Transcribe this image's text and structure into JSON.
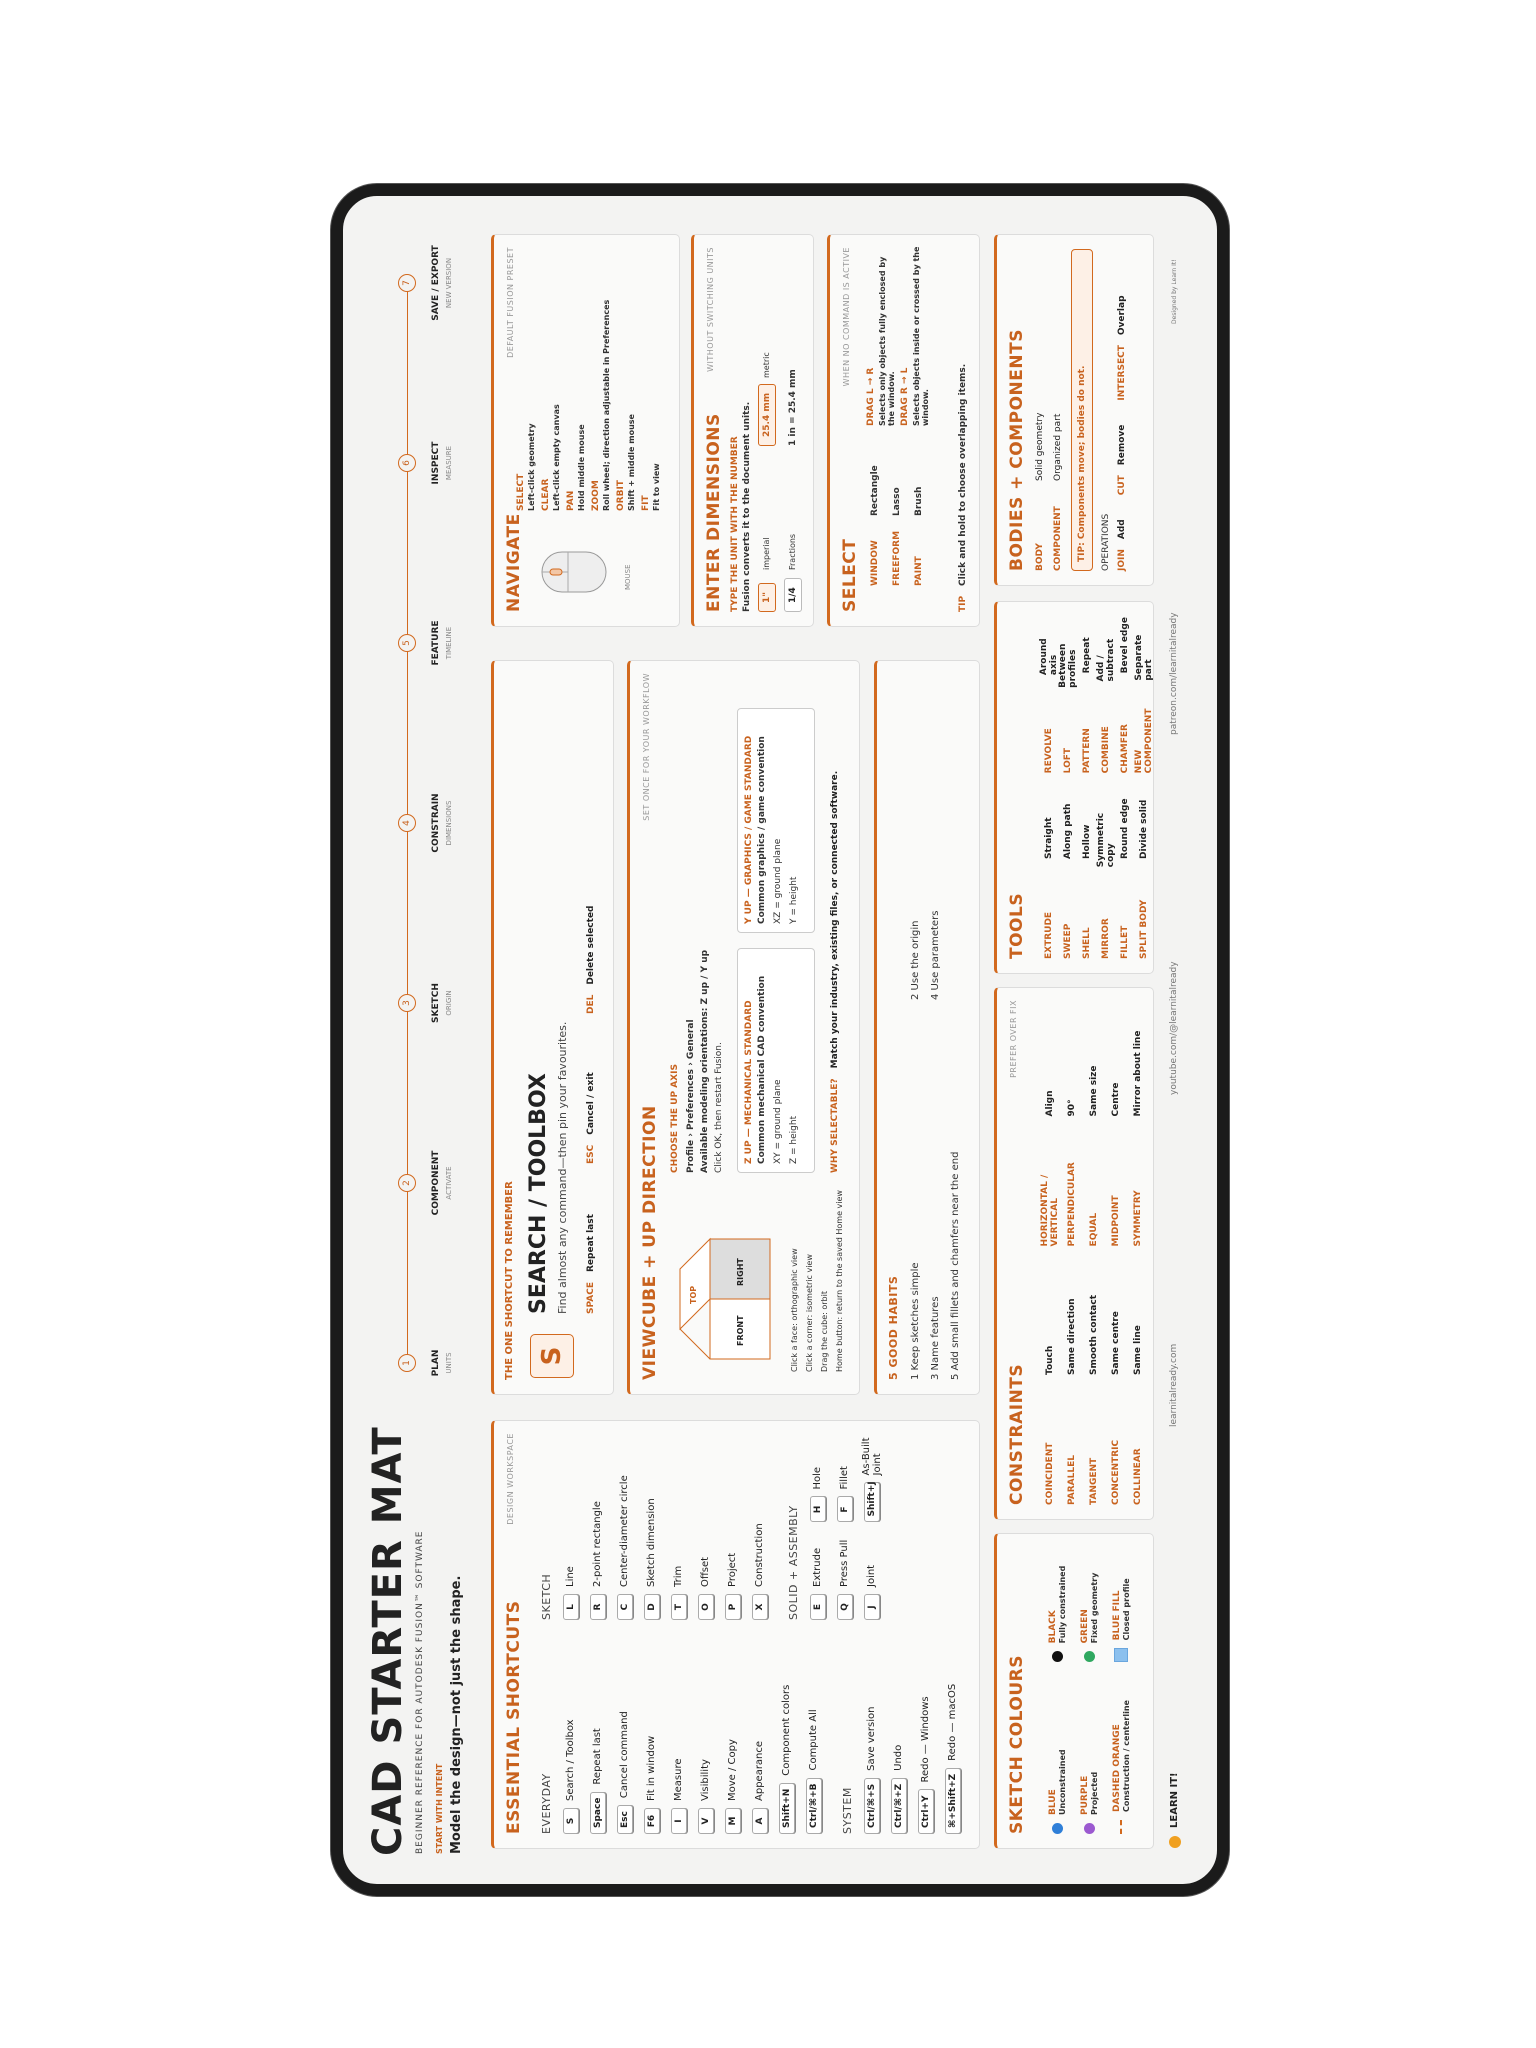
{
  "header": {
    "title": "CAD STARTER MAT",
    "subtitle": "BEGINNER REFERENCE FOR AUTODESK FUSION™ SOFTWARE",
    "intent_label": "START WITH INTENT",
    "intent": "Model the design—not just the shape."
  },
  "workflow": [
    {
      "number": "1",
      "step": "PLAN",
      "detail": "UNITS"
    },
    {
      "number": "2",
      "step": "COMPONENT",
      "detail": "ACTIVATE"
    },
    {
      "number": "3",
      "step": "SKETCH",
      "detail": "ORIGIN"
    },
    {
      "number": "4",
      "step": "CONSTRAIN",
      "detail": "DIMENSIONS"
    },
    {
      "number": "5",
      "step": "FEATURE",
      "detail": "TIMELINE"
    },
    {
      "number": "6",
      "step": "INSPECT",
      "detail": "MEASURE"
    },
    {
      "number": "7",
      "step": "SAVE / EXPORT",
      "detail": "NEW VERSION"
    }
  ],
  "shortcuts": {
    "title": "ESSENTIAL SHORTCUTS",
    "note": "DESIGN WORKSPACE",
    "groups": [
      {
        "heading": "EVERYDAY",
        "items": [
          {
            "key": "S",
            "label": "Search / Toolbox"
          },
          {
            "key": "Space",
            "label": "Repeat last"
          },
          {
            "key": "Esc",
            "label": "Cancel command"
          },
          {
            "key": "F6",
            "label": "Fit in window"
          },
          {
            "key": "I",
            "label": "Measure"
          },
          {
            "key": "V",
            "label": "Visibility"
          },
          {
            "key": "M",
            "label": "Move / Copy"
          },
          {
            "key": "A",
            "label": "Appearance"
          },
          {
            "key": "Shift+N",
            "label": "Component colors"
          },
          {
            "key": "Ctrl/⌘+B",
            "label": "Compute All"
          }
        ]
      },
      {
        "heading": "SYSTEM",
        "items": [
          {
            "key": "Ctrl/⌘+S",
            "label": "Save version"
          },
          {
            "key": "Ctrl/⌘+Z",
            "label": "Undo"
          },
          {
            "key": "Ctrl+Y",
            "label": "Redo — Windows"
          },
          {
            "key": "⌘+Shift+Z",
            "label": "Redo — macOS"
          }
        ]
      },
      {
        "heading": "SKETCH",
        "items": [
          {
            "key": "L",
            "label": "Line"
          },
          {
            "key": "R",
            "label": "2-point rectangle"
          },
          {
            "key": "C",
            "label": "Center-diameter circle"
          },
          {
            "key": "D",
            "label": "Sketch dimension"
          },
          {
            "key": "T",
            "label": "Trim"
          },
          {
            "key": "O",
            "label": "Offset"
          },
          {
            "key": "P",
            "label": "Project"
          },
          {
            "key": "X",
            "label": "Construction"
          }
        ]
      },
      {
        "heading": "SOLID + ASSEMBLY",
        "items": [
          {
            "key": "E",
            "label": "Extrude"
          },
          {
            "key": "H",
            "label": "Hole"
          },
          {
            "key": "Q",
            "label": "Press Pull"
          },
          {
            "key": "F",
            "label": "Fillet"
          },
          {
            "key": "J",
            "label": "Joint"
          },
          {
            "key": "Shift+J",
            "label": "As-Built Joint"
          }
        ]
      }
    ]
  },
  "one_shortcut": {
    "heading": "THE ONE SHORTCUT TO REMEMBER",
    "key": "S",
    "title": "SEARCH / TOOLBOX",
    "detail": "Find almost any command—then pin your favourites.",
    "extras": [
      {
        "key": "SPACE",
        "label": "Repeat last"
      },
      {
        "key": "ESC",
        "label": "Cancel / exit"
      },
      {
        "key": "DEL",
        "label": "Delete selected"
      }
    ]
  },
  "viewcube": {
    "title": "VIEWCUBE + UP DIRECTION",
    "note": "SET ONCE FOR YOUR WORKFLOW",
    "faces": {
      "top": "TOP",
      "front": "FRONT",
      "right": "RIGHT"
    },
    "tips": [
      "Click a face: orthographic view",
      "Click a corner: isometric view",
      "Drag the cube: orbit",
      "Home button: return to the saved Home view"
    ],
    "up_axis": {
      "heading": "CHOOSE THE UP AXIS",
      "path": "Profile › Preferences › General",
      "options": "Available modeling orientations: Z up / Y up",
      "restart": "Click OK, then restart Fusion."
    },
    "standards": [
      {
        "title": "Z UP — MECHANICAL STANDARD",
        "detail": "Common mechanical CAD convention",
        "ground": "XY = ground plane",
        "height": "Z = height"
      },
      {
        "title": "Y UP — GRAPHICS / GAME STANDARD",
        "detail": "Common graphics / game convention",
        "ground": "XZ = ground plane",
        "height": "Y = height"
      }
    ],
    "why_label": "WHY SELECTABLE?",
    "why": "Match your industry, existing files, or connected software."
  },
  "habits": {
    "title": "5 GOOD HABITS",
    "items": [
      "1 Keep sketches simple",
      "2 Use the origin",
      "3 Name features",
      "4 Use parameters",
      "5 Add small fillets and chamfers near the end"
    ]
  },
  "navigate": {
    "title": "NAVIGATE",
    "note": "DEFAULT FUSION PRESET",
    "mouse_label": "MOUSE",
    "actions": [
      {
        "action": "SELECT",
        "detail": "Left-click geometry"
      },
      {
        "action": "CLEAR",
        "detail": "Left-click empty canvas"
      },
      {
        "action": "PAN",
        "detail": "Hold middle mouse"
      },
      {
        "action": "ZOOM",
        "detail": "Roll wheel; direction adjustable in Preferences"
      },
      {
        "action": "ORBIT",
        "detail": "Shift + middle mouse"
      },
      {
        "action": "FIT",
        "detail": "Fit to view"
      }
    ]
  },
  "dimensions": {
    "title": "ENTER DIMENSIONS",
    "note": "WITHOUT SWITCHING UNITS",
    "heading": "TYPE THE UNIT WITH THE NUMBER",
    "detail": "Fusion converts it to the document units.",
    "examples": [
      {
        "input": "1\"",
        "label": "imperial"
      },
      {
        "input": "25.4 mm",
        "label": "metric"
      },
      {
        "input": "1/4",
        "label": "Fractions"
      }
    ],
    "equivalence": "1 in = 25.4 mm"
  },
  "select": {
    "title": "SELECT",
    "note": "WHEN NO COMMAND IS ACTIVE",
    "modes": [
      {
        "mode": "WINDOW",
        "tool": "Rectangle"
      },
      {
        "mode": "FREEFORM",
        "tool": "Lasso"
      },
      {
        "mode": "PAINT",
        "tool": "Brush"
      }
    ],
    "drags": [
      {
        "direction": "DRAG L → R",
        "detail": "Selects only objects fully enclosed by the window."
      },
      {
        "direction": "DRAG R → L",
        "detail": "Selects objects inside or crossed by the window."
      }
    ],
    "tip_label": "TIP",
    "tip": "Click and hold to choose overlapping items."
  },
  "sketch_colours": {
    "title": "SKETCH COLOURS",
    "items": [
      {
        "name": "BLUE",
        "meaning": "Unconstrained",
        "swatch": "#2f7fd8",
        "swatch_style": "dot"
      },
      {
        "name": "PURPLE",
        "meaning": "Projected",
        "swatch": "#9b59d0",
        "swatch_style": "dot"
      },
      {
        "name": "DASHED ORANGE",
        "meaning": "Construction / centerline",
        "swatch": "#d2691e",
        "swatch_style": "dashed"
      },
      {
        "name": "BLACK",
        "meaning": "Fully constrained",
        "swatch": "#111111",
        "swatch_style": "dot"
      },
      {
        "name": "GREEN",
        "meaning": "Fixed geometry",
        "swatch": "#2fa860",
        "swatch_style": "dot"
      },
      {
        "name": "BLUE FILL",
        "meaning": "Closed profile",
        "swatch": "#8cc0ee",
        "swatch_style": "fill"
      }
    ]
  },
  "constraints": {
    "title": "CONSTRAINTS",
    "note": "PREFER OVER FIX",
    "items": [
      {
        "name": "COINCIDENT",
        "meaning": "Touch"
      },
      {
        "name": "PARALLEL",
        "meaning": "Same direction"
      },
      {
        "name": "TANGENT",
        "meaning": "Smooth contact"
      },
      {
        "name": "CONCENTRIC",
        "meaning": "Same centre"
      },
      {
        "name": "COLLINEAR",
        "meaning": "Same line"
      },
      {
        "name": "HORIZONTAL / VERTICAL",
        "meaning": "Align"
      },
      {
        "name": "PERPENDICULAR",
        "meaning": "90°"
      },
      {
        "name": "EQUAL",
        "meaning": "Same size"
      },
      {
        "name": "MIDPOINT",
        "meaning": "Centre"
      },
      {
        "name": "SYMMETRY",
        "meaning": "Mirror about line"
      }
    ]
  },
  "tools": {
    "title": "TOOLS",
    "items": [
      {
        "name": "EXTRUDE",
        "meaning": "Straight"
      },
      {
        "name": "SWEEP",
        "meaning": "Along path"
      },
      {
        "name": "SHELL",
        "meaning": "Hollow"
      },
      {
        "name": "MIRROR",
        "meaning": "Symmetric copy"
      },
      {
        "name": "FILLET",
        "meaning": "Round edge"
      },
      {
        "name": "SPLIT BODY",
        "meaning": "Divide solid"
      },
      {
        "name": "REVOLVE",
        "meaning": "Around axis"
      },
      {
        "name": "LOFT",
        "meaning": "Between profiles"
      },
      {
        "name": "PATTERN",
        "meaning": "Repeat"
      },
      {
        "name": "COMBINE",
        "meaning": "Add / subtract"
      },
      {
        "name": "CHAMFER",
        "meaning": "Bevel edge"
      },
      {
        "name": "NEW COMPONENT",
        "meaning": "Separate part"
      }
    ]
  },
  "bodies": {
    "title": "BODIES + COMPONENTS",
    "items": [
      {
        "name": "BODY",
        "meaning": "Solid geometry"
      },
      {
        "name": "COMPONENT",
        "meaning": "Organized part"
      }
    ],
    "tip": "TIP: Components move; bodies do not.",
    "operations_label": "OPERATIONS",
    "operations": [
      {
        "name": "JOIN",
        "meaning": "Add"
      },
      {
        "name": "CUT",
        "meaning": "Remove"
      },
      {
        "name": "INTERSECT",
        "meaning": "Overlap"
      }
    ]
  },
  "footer": {
    "brand": "LEARN IT!",
    "website": "learnitalready.com",
    "youtube": "youtube.com/@learnitalready",
    "patreon": "patreon.com/learnitalready",
    "credit": "Designed by Learn It!"
  }
}
